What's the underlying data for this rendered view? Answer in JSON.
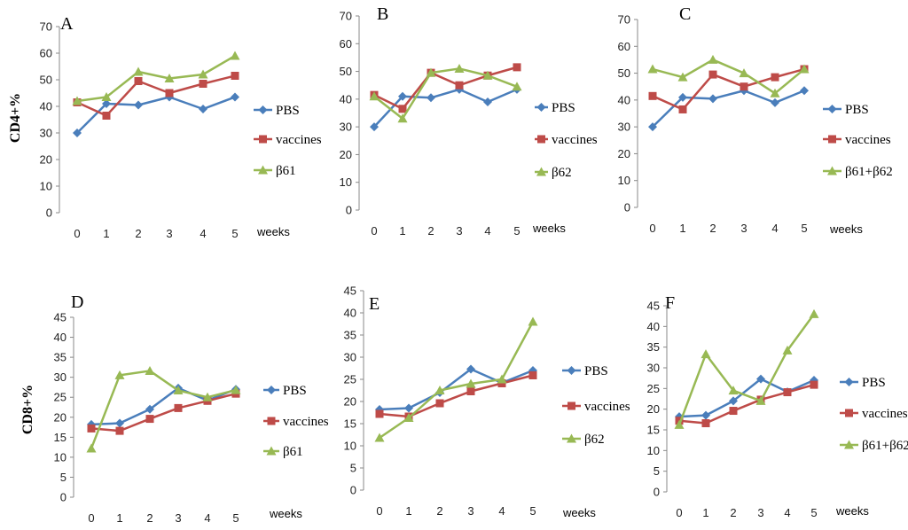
{
  "chart_data": [
    {
      "type": "line",
      "panel": "A",
      "categories": [
        "0",
        "1",
        "2",
        "3",
        "4",
        "5"
      ],
      "xlabel": "weeks",
      "ylabel": "CD4+%",
      "ylim": [
        0,
        70
      ],
      "yticks": [
        "0",
        "10",
        "20",
        "30",
        "40",
        "50",
        "60",
        "70"
      ],
      "series": [
        {
          "name": "PBS",
          "color": "#4a7ebb",
          "marker": "diamond",
          "values": [
            30,
            41,
            40.5,
            43.5,
            39,
            43.5
          ]
        },
        {
          "name": "vaccines",
          "color": "#be4b48",
          "marker": "square",
          "values": [
            41.5,
            36.5,
            49.5,
            45,
            48.5,
            51.5
          ]
        },
        {
          "name": "β61",
          "color": "#98b954",
          "marker": "triangle",
          "values": [
            42,
            43.5,
            53,
            50.5,
            52,
            59
          ]
        }
      ]
    },
    {
      "type": "line",
      "panel": "B",
      "categories": [
        "0",
        "1",
        "2",
        "3",
        "4",
        "5"
      ],
      "xlabel": "weeks",
      "ylabel": "",
      "ylim": [
        0,
        70
      ],
      "yticks": [
        "0",
        "10",
        "20",
        "30",
        "40",
        "50",
        "60",
        "70"
      ],
      "series": [
        {
          "name": "PBS",
          "color": "#4a7ebb",
          "marker": "diamond",
          "values": [
            30,
            41,
            40.5,
            43.5,
            39,
            43.5
          ]
        },
        {
          "name": "vaccines",
          "color": "#be4b48",
          "marker": "square",
          "values": [
            41.5,
            36.5,
            49.5,
            45,
            48.5,
            51.5
          ]
        },
        {
          "name": "β62",
          "color": "#98b954",
          "marker": "triangle",
          "values": [
            41,
            33,
            49.5,
            51,
            48.5,
            44.5
          ]
        }
      ]
    },
    {
      "type": "line",
      "panel": "C",
      "categories": [
        "0",
        "1",
        "2",
        "3",
        "4",
        "5"
      ],
      "xlabel": "weeks",
      "ylabel": "",
      "ylim": [
        0,
        70
      ],
      "yticks": [
        "0",
        "10",
        "20",
        "30",
        "40",
        "50",
        "60",
        "70"
      ],
      "series": [
        {
          "name": "PBS",
          "color": "#4a7ebb",
          "marker": "diamond",
          "values": [
            30,
            41,
            40.5,
            43.5,
            39,
            43.5
          ]
        },
        {
          "name": "vaccines",
          "color": "#be4b48",
          "marker": "square",
          "values": [
            41.5,
            36.5,
            49.5,
            45,
            48.5,
            51.5
          ]
        },
        {
          "name": "β61+β62",
          "color": "#98b954",
          "marker": "triangle",
          "values": [
            51.5,
            48.5,
            55,
            50,
            42.5,
            51.5
          ]
        }
      ]
    },
    {
      "type": "line",
      "panel": "D",
      "categories": [
        "0",
        "1",
        "2",
        "3",
        "4",
        "5"
      ],
      "xlabel": "weeks",
      "ylabel": "CD8+%",
      "ylim": [
        0,
        45
      ],
      "yticks": [
        "0",
        "5",
        "10",
        "15",
        "20",
        "25",
        "30",
        "35",
        "40",
        "45"
      ],
      "series": [
        {
          "name": "PBS",
          "color": "#4a7ebb",
          "marker": "diamond",
          "values": [
            18.2,
            18.5,
            22,
            27.3,
            24.2,
            27
          ]
        },
        {
          "name": "vaccines",
          "color": "#be4b48",
          "marker": "square",
          "values": [
            17.2,
            16.6,
            19.6,
            22.3,
            24.1,
            25.9
          ]
        },
        {
          "name": "β61",
          "color": "#98b954",
          "marker": "triangle",
          "values": [
            12.2,
            30.5,
            31.6,
            26.7,
            25,
            26.8
          ]
        }
      ]
    },
    {
      "type": "line",
      "panel": "E",
      "categories": [
        "0",
        "1",
        "2",
        "3",
        "4",
        "5"
      ],
      "xlabel": "weeks",
      "ylabel": "",
      "ylim": [
        0,
        45
      ],
      "yticks": [
        "0",
        "5",
        "10",
        "15",
        "20",
        "25",
        "30",
        "35",
        "40",
        "45"
      ],
      "series": [
        {
          "name": "PBS",
          "color": "#4a7ebb",
          "marker": "diamond",
          "values": [
            18.2,
            18.5,
            22,
            27.3,
            24.2,
            27
          ]
        },
        {
          "name": "vaccines",
          "color": "#be4b48",
          "marker": "square",
          "values": [
            17.2,
            16.6,
            19.6,
            22.3,
            24.1,
            25.9
          ]
        },
        {
          "name": "β62",
          "color": "#98b954",
          "marker": "triangle",
          "values": [
            11.8,
            16.3,
            22.5,
            24,
            25,
            38
          ]
        }
      ]
    },
    {
      "type": "line",
      "panel": "F",
      "categories": [
        "0",
        "1",
        "2",
        "3",
        "4",
        "5"
      ],
      "xlabel": "weeks",
      "ylabel": "",
      "ylim": [
        0,
        45
      ],
      "yticks": [
        "0",
        "5",
        "10",
        "15",
        "20",
        "25",
        "30",
        "35",
        "40",
        "45"
      ],
      "series": [
        {
          "name": "PBS",
          "color": "#4a7ebb",
          "marker": "diamond",
          "values": [
            18.2,
            18.5,
            22,
            27.3,
            24.2,
            27
          ]
        },
        {
          "name": "vaccines",
          "color": "#be4b48",
          "marker": "square",
          "values": [
            17.2,
            16.6,
            19.6,
            22.3,
            24.1,
            25.9
          ]
        },
        {
          "name": "β61+β62",
          "color": "#98b954",
          "marker": "triangle",
          "values": [
            16.2,
            33.3,
            24.5,
            22,
            34.2,
            43
          ]
        }
      ]
    }
  ]
}
